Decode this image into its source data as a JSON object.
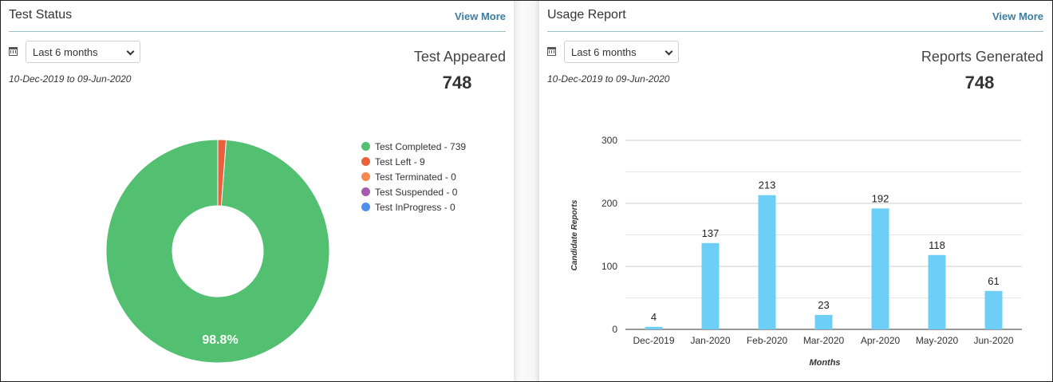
{
  "test_status": {
    "title": "Test Status",
    "view_more": "View More",
    "period": "Last 6 months",
    "date_range": "10-Dec-2019 to 09-Jun-2020",
    "metric_label": "Test Appeared",
    "metric_value": "748",
    "calendar_icon": "calendar-icon"
  },
  "usage_report": {
    "title": "Usage Report",
    "view_more": "View More",
    "period": "Last 6 months",
    "date_range": "10-Dec-2019 to 09-Jun-2020",
    "metric_label": "Reports Generated",
    "metric_value": "748",
    "calendar_icon": "calendar-icon"
  },
  "chart_data": [
    {
      "type": "pie",
      "donut": true,
      "slices": [
        {
          "label": "Test Completed - 739",
          "value": 739,
          "color": "#52bf71"
        },
        {
          "label": "Test Left - 9",
          "value": 9,
          "color": "#e8603c"
        },
        {
          "label": "Test Terminated - 0",
          "value": 0,
          "color": "#f5894f"
        },
        {
          "label": "Test Suspended - 0",
          "value": 0,
          "color": "#a55bb0"
        },
        {
          "label": "Test InProgress - 0",
          "value": 0,
          "color": "#4e8ef0"
        }
      ],
      "data_label": "98.8%",
      "legend_position": "right"
    },
    {
      "type": "bar",
      "categories": [
        "Dec-2019",
        "Jan-2020",
        "Feb-2020",
        "Mar-2020",
        "Apr-2020",
        "May-2020",
        "Jun-2020"
      ],
      "values": [
        4,
        137,
        213,
        23,
        192,
        118,
        61
      ],
      "xlabel": "Months",
      "ylabel": "Candidate Reports",
      "yticks": [
        "0",
        "100",
        "200",
        "300"
      ],
      "ylim": [
        0,
        300
      ],
      "grid": true,
      "color": "#6dcff6"
    }
  ]
}
